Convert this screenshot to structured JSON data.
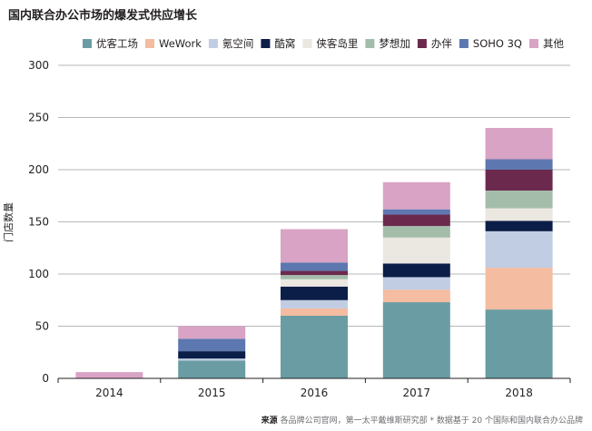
{
  "chart_data": {
    "type": "bar",
    "stacked": true,
    "title": "国内联合办公市场的爆发式供应增长",
    "xlabel": "",
    "ylabel": "门店数量",
    "ylim": [
      0,
      300
    ],
    "yticks": [
      0,
      50,
      100,
      150,
      200,
      250,
      300
    ],
    "categories": [
      "2014",
      "2015",
      "2016",
      "2017",
      "2018"
    ],
    "legend_position": "top",
    "series": [
      {
        "name": "优客工场",
        "color": "#6a9ca3",
        "values": [
          0,
          17,
          60,
          73,
          66
        ]
      },
      {
        "name": "WeWork",
        "color": "#f4bca0",
        "values": [
          0,
          0,
          7,
          12,
          40
        ]
      },
      {
        "name": "氪空间",
        "color": "#c1cde2",
        "values": [
          0,
          2,
          8,
          12,
          35
        ]
      },
      {
        "name": "酷窝",
        "color": "#0b1e48",
        "values": [
          0,
          7,
          13,
          13,
          10
        ]
      },
      {
        "name": "侠客岛里",
        "color": "#ebe7e1",
        "values": [
          0,
          0,
          7,
          25,
          12
        ]
      },
      {
        "name": "梦想加",
        "color": "#a4bdab",
        "values": [
          0,
          0,
          4,
          11,
          17
        ]
      },
      {
        "name": "办伴",
        "color": "#6b2a4d",
        "values": [
          0,
          0,
          4,
          11,
          20
        ]
      },
      {
        "name": "SOHO 3Q",
        "color": "#5d77b0",
        "values": [
          0,
          12,
          8,
          5,
          10
        ]
      },
      {
        "name": "其他",
        "color": "#d8a3c4",
        "values": [
          6,
          12,
          32,
          26,
          30
        ]
      }
    ]
  },
  "source": {
    "label": "来源",
    "text": "各品牌公司官网，第一太平戴维斯研究部 * 数据基于 20 个国际和国内联合办公品牌"
  }
}
